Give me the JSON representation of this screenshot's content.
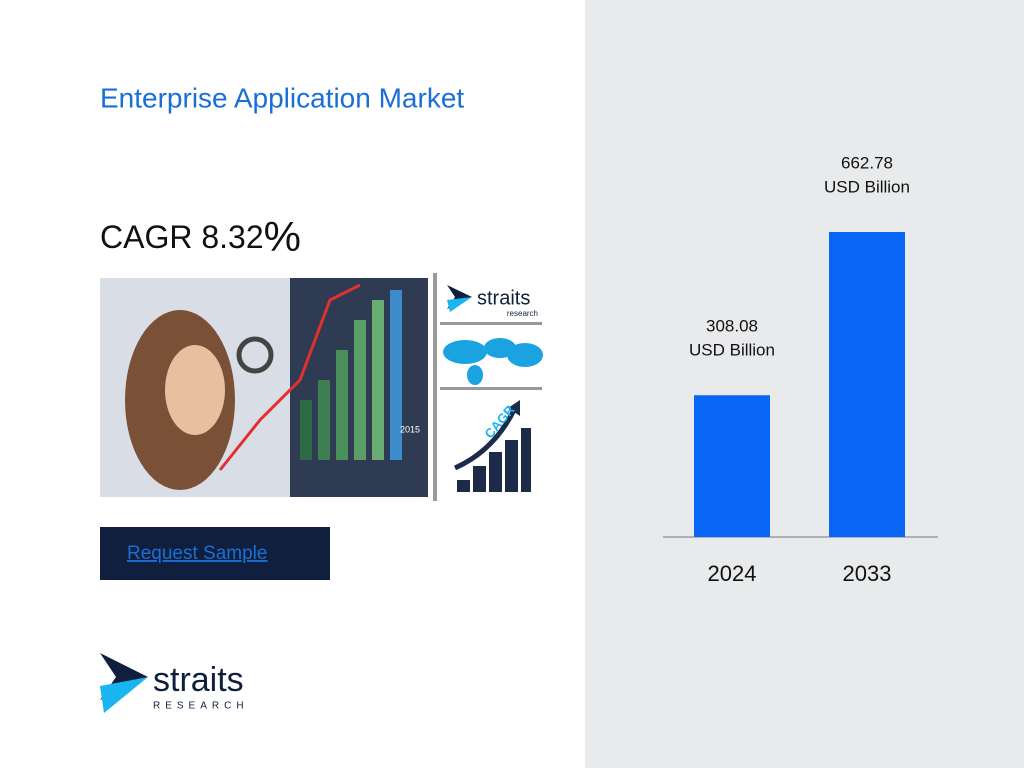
{
  "header": {
    "title": "Enterprise Application Market"
  },
  "cagr": {
    "label": "CAGR",
    "value": 8.32,
    "unit": "%"
  },
  "button": {
    "label": "Request Sample"
  },
  "thumbnail": {
    "logo_name": "straits",
    "logo_tagline": "research",
    "cagr_text": "CAGR",
    "photo_year": "2015"
  },
  "logo": {
    "name": "straits",
    "tagline": "RESEARCH"
  },
  "chart_data": {
    "type": "bar",
    "categories": [
      "2024",
      "2033"
    ],
    "values": [
      308.08,
      662.78
    ],
    "value_unit": "USD Billion",
    "color": "#0a64f5"
  }
}
